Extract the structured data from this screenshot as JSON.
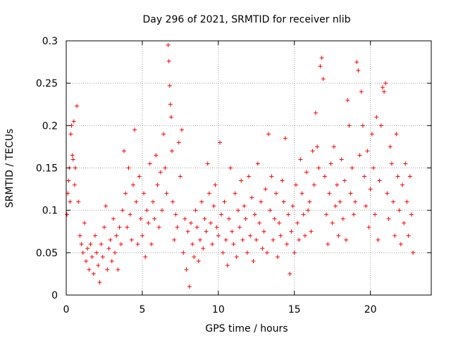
{
  "chart_data": {
    "type": "scatter",
    "title": "Day 296 of 2021, SRMTID for receiver nlib",
    "xlabel": "GPS time / hours",
    "ylabel": "SRMTID / TECUs",
    "xlim": [
      0,
      24
    ],
    "ylim": [
      0,
      0.3
    ],
    "xticks": [
      0,
      5,
      10,
      15,
      20
    ],
    "yticks": [
      0,
      0.05,
      0.1,
      0.15,
      0.2,
      0.25,
      0.3
    ],
    "x_tick_labels": [
      "0",
      "5",
      "10",
      "15",
      "20"
    ],
    "y_tick_labels": [
      "0",
      "0.05",
      "0.1",
      "0.15",
      "0.2",
      "0.25",
      "0.3"
    ],
    "grid": true,
    "marker": "+",
    "color": "#ff0000",
    "series": [
      {
        "points": [
          [
            0.05,
            0.095
          ],
          [
            0.1,
            0.12
          ],
          [
            0.15,
            0.135
          ],
          [
            0.2,
            0.15
          ],
          [
            0.25,
            0.11
          ],
          [
            0.3,
            0.19
          ],
          [
            0.35,
            0.2
          ],
          [
            0.4,
            0.165
          ],
          [
            0.45,
            0.16
          ],
          [
            0.5,
            0.205
          ],
          [
            0.55,
            0.13
          ],
          [
            0.6,
            0.15
          ],
          [
            0.7,
            0.223
          ],
          [
            0.8,
            0.11
          ],
          [
            0.9,
            0.07
          ],
          [
            1.0,
            0.06
          ],
          [
            1.1,
            0.05
          ],
          [
            1.2,
            0.085
          ],
          [
            1.3,
            0.04
          ],
          [
            1.4,
            0.055
          ],
          [
            1.5,
            0.03
          ],
          [
            1.6,
            0.06
          ],
          [
            1.7,
            0.045
          ],
          [
            1.8,
            0.025
          ],
          [
            1.9,
            0.07
          ],
          [
            2.0,
            0.05
          ],
          [
            2.1,
            0.035
          ],
          [
            2.2,
            0.015
          ],
          [
            2.3,
            0.06
          ],
          [
            2.4,
            0.045
          ],
          [
            2.5,
            0.08
          ],
          [
            2.6,
            0.105
          ],
          [
            2.7,
            0.03
          ],
          [
            2.8,
            0.055
          ],
          [
            2.9,
            0.065
          ],
          [
            3.0,
            0.04
          ],
          [
            3.1,
            0.09
          ],
          [
            3.2,
            0.05
          ],
          [
            3.3,
            0.07
          ],
          [
            3.4,
            0.03
          ],
          [
            3.5,
            0.08
          ],
          [
            3.6,
            0.06
          ],
          [
            3.7,
            0.1
          ],
          [
            3.8,
            0.17
          ],
          [
            3.9,
            0.12
          ],
          [
            4.0,
            0.08
          ],
          [
            4.1,
            0.15
          ],
          [
            4.2,
            0.095
          ],
          [
            4.3,
            0.065
          ],
          [
            4.4,
            0.13
          ],
          [
            4.5,
            0.195
          ],
          [
            4.6,
            0.11
          ],
          [
            4.7,
            0.06
          ],
          [
            4.8,
            0.14
          ],
          [
            4.9,
            0.09
          ],
          [
            5.0,
            0.07
          ],
          [
            5.1,
            0.12
          ],
          [
            5.2,
            0.045
          ],
          [
            5.3,
            0.1
          ],
          [
            5.4,
            0.085
          ],
          [
            5.5,
            0.155
          ],
          [
            5.6,
            0.06
          ],
          [
            5.7,
            0.11
          ],
          [
            5.8,
            0.09
          ],
          [
            5.9,
            0.165
          ],
          [
            6.0,
            0.13
          ],
          [
            6.1,
            0.08
          ],
          [
            6.2,
            0.145
          ],
          [
            6.3,
            0.1
          ],
          [
            6.4,
            0.19
          ],
          [
            6.5,
            0.15
          ],
          [
            6.6,
            0.12
          ],
          [
            6.7,
            0.295
          ],
          [
            6.75,
            0.276
          ],
          [
            6.8,
            0.247
          ],
          [
            6.85,
            0.225
          ],
          [
            6.9,
            0.21
          ],
          [
            6.95,
            0.17
          ],
          [
            7.0,
            0.11
          ],
          [
            7.1,
            0.065
          ],
          [
            7.2,
            0.095
          ],
          [
            7.3,
            0.08
          ],
          [
            7.4,
            0.18
          ],
          [
            7.5,
            0.14
          ],
          [
            7.6,
            0.195
          ],
          [
            7.7,
            0.05
          ],
          [
            7.8,
            0.09
          ],
          [
            7.9,
            0.03
          ],
          [
            8.0,
            0.075
          ],
          [
            8.1,
            0.01
          ],
          [
            8.2,
            0.085
          ],
          [
            8.3,
            0.06
          ],
          [
            8.4,
            0.045
          ],
          [
            8.5,
            0.1
          ],
          [
            8.6,
            0.08
          ],
          [
            8.7,
            0.04
          ],
          [
            8.8,
            0.065
          ],
          [
            8.9,
            0.11
          ],
          [
            9.0,
            0.055
          ],
          [
            9.1,
            0.09
          ],
          [
            9.2,
            0.075
          ],
          [
            9.3,
            0.155
          ],
          [
            9.4,
            0.12
          ],
          [
            9.5,
            0.085
          ],
          [
            9.6,
            0.06
          ],
          [
            9.7,
            0.105
          ],
          [
            9.8,
            0.13
          ],
          [
            9.9,
            0.08
          ],
          [
            10.0,
            0.07
          ],
          [
            10.1,
            0.18
          ],
          [
            10.2,
            0.095
          ],
          [
            10.3,
            0.05
          ],
          [
            10.4,
            0.11
          ],
          [
            10.5,
            0.065
          ],
          [
            10.6,
            0.035
          ],
          [
            10.7,
            0.09
          ],
          [
            10.8,
            0.15
          ],
          [
            10.9,
            0.075
          ],
          [
            11.0,
            0.06
          ],
          [
            11.1,
            0.12
          ],
          [
            11.2,
            0.045
          ],
          [
            11.3,
            0.1
          ],
          [
            11.4,
            0.08
          ],
          [
            11.5,
            0.135
          ],
          [
            11.6,
            0.065
          ],
          [
            11.7,
            0.105
          ],
          [
            11.8,
            0.09
          ],
          [
            11.9,
            0.05
          ],
          [
            12.0,
            0.14
          ],
          [
            12.1,
            0.07
          ],
          [
            12.2,
            0.115
          ],
          [
            12.3,
            0.04
          ],
          [
            12.4,
            0.095
          ],
          [
            12.5,
            0.065
          ],
          [
            12.6,
            0.155
          ],
          [
            12.7,
            0.085
          ],
          [
            12.8,
            0.11
          ],
          [
            12.9,
            0.055
          ],
          [
            13.0,
            0.075
          ],
          [
            13.1,
            0.125
          ],
          [
            13.2,
            0.05
          ],
          [
            13.3,
            0.19
          ],
          [
            13.4,
            0.1
          ],
          [
            13.5,
            0.14
          ],
          [
            13.6,
            0.065
          ],
          [
            13.7,
            0.09
          ],
          [
            13.8,
            0.12
          ],
          [
            13.9,
            0.045
          ],
          [
            14.0,
            0.085
          ],
          [
            14.1,
            0.07
          ],
          [
            14.2,
            0.135
          ],
          [
            14.3,
            0.11
          ],
          [
            14.4,
            0.185
          ],
          [
            14.5,
            0.06
          ],
          [
            14.6,
            0.095
          ],
          [
            14.7,
            0.025
          ],
          [
            14.8,
            0.075
          ],
          [
            14.9,
            0.105
          ],
          [
            15.0,
            0.05
          ],
          [
            15.1,
            0.13
          ],
          [
            15.2,
            0.085
          ],
          [
            15.3,
            0.065
          ],
          [
            15.4,
            0.16
          ],
          [
            15.5,
            0.12
          ],
          [
            15.6,
            0.095
          ],
          [
            15.7,
            0.07
          ],
          [
            15.8,
            0.145
          ],
          [
            15.9,
            0.1
          ],
          [
            16.0,
            0.11
          ],
          [
            16.1,
            0.075
          ],
          [
            16.2,
            0.17
          ],
          [
            16.3,
            0.13
          ],
          [
            16.4,
            0.215
          ],
          [
            16.5,
            0.175
          ],
          [
            16.6,
            0.15
          ],
          [
            16.7,
            0.27
          ],
          [
            16.8,
            0.28
          ],
          [
            16.9,
            0.255
          ],
          [
            17.0,
            0.14
          ],
          [
            17.1,
            0.095
          ],
          [
            17.2,
            0.06
          ],
          [
            17.3,
            0.12
          ],
          [
            17.4,
            0.155
          ],
          [
            17.5,
            0.085
          ],
          [
            17.6,
            0.175
          ],
          [
            17.7,
            0.105
          ],
          [
            17.8,
            0.13
          ],
          [
            17.9,
            0.07
          ],
          [
            18.0,
            0.11
          ],
          [
            18.1,
            0.16
          ],
          [
            18.2,
            0.09
          ],
          [
            18.3,
            0.135
          ],
          [
            18.4,
            0.065
          ],
          [
            18.5,
            0.23
          ],
          [
            18.6,
            0.2
          ],
          [
            18.7,
            0.12
          ],
          [
            18.8,
            0.15
          ],
          [
            18.9,
            0.095
          ],
          [
            19.0,
            0.11
          ],
          [
            19.1,
            0.275
          ],
          [
            19.2,
            0.265
          ],
          [
            19.3,
            0.165
          ],
          [
            19.4,
            0.24
          ],
          [
            19.5,
            0.2
          ],
          [
            19.6,
            0.14
          ],
          [
            19.7,
            0.105
          ],
          [
            19.8,
            0.17
          ],
          [
            19.9,
            0.08
          ],
          [
            20.0,
            0.125
          ],
          [
            20.1,
            0.19
          ],
          [
            20.2,
            0.15
          ],
          [
            20.3,
            0.095
          ],
          [
            20.4,
            0.21
          ],
          [
            20.5,
            0.065
          ],
          [
            20.6,
            0.135
          ],
          [
            20.7,
            0.2
          ],
          [
            20.8,
            0.245
          ],
          [
            20.9,
            0.24
          ],
          [
            21.0,
            0.25
          ],
          [
            21.1,
            0.12
          ],
          [
            21.2,
            0.09
          ],
          [
            21.3,
            0.175
          ],
          [
            21.4,
            0.155
          ],
          [
            21.5,
            0.11
          ],
          [
            21.6,
            0.07
          ],
          [
            21.7,
            0.19
          ],
          [
            21.8,
            0.14
          ],
          [
            21.9,
            0.1
          ],
          [
            22.0,
            0.06
          ],
          [
            22.1,
            0.13
          ],
          [
            22.2,
            0.085
          ],
          [
            22.3,
            0.155
          ],
          [
            22.4,
            0.11
          ],
          [
            22.5,
            0.07
          ],
          [
            22.6,
            0.14
          ],
          [
            22.7,
            0.095
          ],
          [
            22.8,
            0.05
          ]
        ]
      }
    ]
  }
}
